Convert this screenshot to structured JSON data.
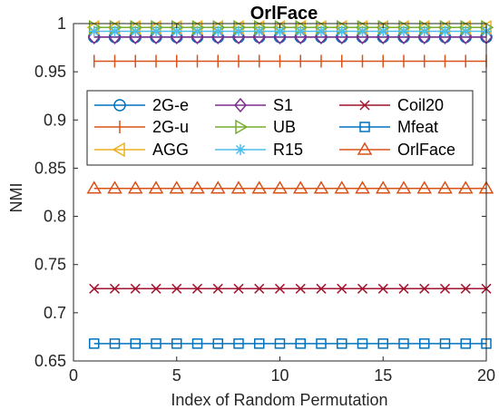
{
  "chart_data": {
    "type": "line",
    "title": "OrlFace",
    "xlabel": "Index of Random Permutation",
    "ylabel": "NMI",
    "xlim": [
      0,
      20
    ],
    "ylim": [
      0.65,
      1.0
    ],
    "xticks": [
      0,
      5,
      10,
      15,
      20
    ],
    "xtick_labels": [
      "0",
      "5",
      "10",
      "15",
      "20"
    ],
    "yticks": [
      0.65,
      0.7,
      0.75,
      0.8,
      0.85,
      0.9,
      0.95,
      1.0
    ],
    "ytick_labels": [
      "0.65",
      "0.7",
      "0.75",
      "0.8",
      "0.85",
      "0.9",
      "0.95",
      "1"
    ],
    "grid": false,
    "legend_position": "top-left inside",
    "legend_columns": 3,
    "x": [
      1,
      2,
      3,
      4,
      5,
      6,
      7,
      8,
      9,
      10,
      11,
      12,
      13,
      14,
      15,
      16,
      17,
      18,
      19,
      20
    ],
    "series": [
      {
        "name": "2G-e",
        "marker": "circle",
        "color": "#0072BD",
        "values": [
          0.986,
          0.986,
          0.986,
          0.986,
          0.986,
          0.986,
          0.986,
          0.986,
          0.986,
          0.986,
          0.986,
          0.986,
          0.986,
          0.986,
          0.986,
          0.986,
          0.986,
          0.986,
          0.986,
          0.986
        ]
      },
      {
        "name": "2G-u",
        "marker": "vline",
        "color": "#D95319",
        "values": [
          0.961,
          0.961,
          0.961,
          0.961,
          0.961,
          0.961,
          0.961,
          0.961,
          0.961,
          0.961,
          0.961,
          0.961,
          0.961,
          0.961,
          0.961,
          0.961,
          0.961,
          0.961,
          0.961,
          0.961
        ]
      },
      {
        "name": "AGG",
        "marker": "triangle-left",
        "color": "#EDB120",
        "values": [
          0.996,
          0.996,
          0.996,
          0.996,
          0.996,
          0.996,
          0.996,
          0.996,
          0.996,
          0.996,
          0.996,
          0.996,
          0.996,
          0.996,
          0.996,
          0.996,
          0.996,
          0.996,
          0.996,
          0.996
        ]
      },
      {
        "name": "S1",
        "marker": "diamond",
        "color": "#7E2F8E",
        "values": [
          0.986,
          0.986,
          0.986,
          0.986,
          0.986,
          0.986,
          0.986,
          0.986,
          0.986,
          0.986,
          0.986,
          0.986,
          0.986,
          0.986,
          0.986,
          0.986,
          0.986,
          0.986,
          0.986,
          0.986
        ]
      },
      {
        "name": "UB",
        "marker": "triangle-right",
        "color": "#77AC30",
        "values": [
          0.996,
          0.996,
          0.996,
          0.996,
          0.996,
          0.996,
          0.996,
          0.996,
          0.996,
          0.996,
          0.996,
          0.996,
          0.996,
          0.996,
          0.996,
          0.996,
          0.996,
          0.996,
          0.996,
          0.996
        ]
      },
      {
        "name": "R15",
        "marker": "asterisk",
        "color": "#4DBEEE",
        "values": [
          0.992,
          0.992,
          0.992,
          0.992,
          0.992,
          0.992,
          0.992,
          0.992,
          0.992,
          0.992,
          0.992,
          0.992,
          0.992,
          0.992,
          0.992,
          0.992,
          0.992,
          0.992,
          0.992,
          0.992
        ]
      },
      {
        "name": "Coil20",
        "marker": "x",
        "color": "#A2142F",
        "values": [
          0.725,
          0.725,
          0.725,
          0.725,
          0.725,
          0.725,
          0.725,
          0.725,
          0.725,
          0.725,
          0.725,
          0.725,
          0.725,
          0.725,
          0.725,
          0.725,
          0.725,
          0.725,
          0.725,
          0.725
        ]
      },
      {
        "name": "Mfeat",
        "marker": "square",
        "color": "#0072BD",
        "values": [
          0.668,
          0.668,
          0.668,
          0.668,
          0.668,
          0.668,
          0.668,
          0.668,
          0.668,
          0.668,
          0.668,
          0.668,
          0.668,
          0.668,
          0.668,
          0.668,
          0.668,
          0.668,
          0.668,
          0.668
        ]
      },
      {
        "name": "OrlFace",
        "marker": "triangle-up",
        "color": "#D95319",
        "values": [
          0.829,
          0.829,
          0.829,
          0.829,
          0.829,
          0.829,
          0.829,
          0.829,
          0.829,
          0.829,
          0.829,
          0.829,
          0.829,
          0.829,
          0.829,
          0.829,
          0.829,
          0.829,
          0.829,
          0.829
        ]
      }
    ]
  }
}
